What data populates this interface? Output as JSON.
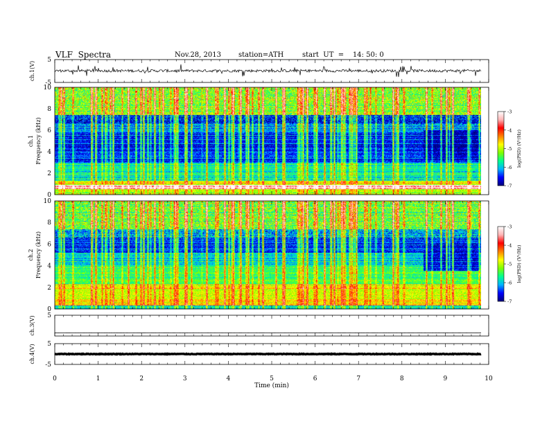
{
  "header": {
    "title": "VLF  Spectra",
    "date": "Nov.28, 2013",
    "station": "station=ATH",
    "start": "start  UT  =    14: 50: 0"
  },
  "chart_data": {
    "type": "heatmap",
    "xlabel": "Time  (min)",
    "xlim": [
      0,
      10
    ],
    "xticks": [
      "0",
      "1",
      "2",
      "3",
      "4",
      "5",
      "6",
      "7",
      "8",
      "9",
      "10"
    ],
    "data_end_min": 9.82,
    "panels": [
      {
        "id": "ch1-waveform",
        "kind": "line",
        "ylabel": "ch.1(V)",
        "ylim": [
          -5,
          5
        ],
        "yticks": [
          "5",
          "-5"
        ],
        "description_level": 0.1,
        "noise_amplitude": 0.6
      },
      {
        "id": "ch1-spectrogram",
        "kind": "spectrogram",
        "ylabel": "Frequency  (kHz)",
        "chlabel": "ch.1",
        "ylim": [
          0,
          10
        ],
        "yticks": [
          "0",
          "2",
          "4",
          "6",
          "8",
          "10"
        ],
        "colorbar": {
          "label": "log(PSD) (V²/Hz)",
          "range": [
            -7,
            -3
          ],
          "ticks": [
            "-3",
            "-4",
            "-5",
            "-6",
            "-7"
          ]
        },
        "bands_khz": [
          {
            "from": 0,
            "to": 0.5,
            "level": -5.2
          },
          {
            "from": 0.5,
            "to": 0.9,
            "level": -3.4
          },
          {
            "from": 0.9,
            "to": 1.3,
            "level": -5.0
          },
          {
            "from": 1.3,
            "to": 3.0,
            "level": -5.9
          },
          {
            "from": 3.0,
            "to": 5.8,
            "level": -6.6
          },
          {
            "from": 5.8,
            "to": 6.6,
            "level": -6.2
          },
          {
            "from": 6.6,
            "to": 7.4,
            "level": -6.6
          },
          {
            "from": 7.4,
            "to": 10.0,
            "level": -5.3
          }
        ],
        "dark_region": {
          "t_from": 8.5,
          "t_to": 9.8,
          "f_from": 3.3,
          "f_to": 6.0,
          "level": -6.9
        }
      },
      {
        "id": "ch2-spectrogram",
        "kind": "spectrogram",
        "ylabel": "Frequency  (kHz)",
        "chlabel": "ch.2",
        "ylim": [
          0,
          10
        ],
        "yticks": [
          "0",
          "2",
          "4",
          "6",
          "8",
          "10"
        ],
        "colorbar": {
          "label": "log(PSD) (V²/Hz)",
          "range": [
            -7,
            -3
          ],
          "ticks": [
            "-3",
            "-4",
            "-5",
            "-6",
            "-7"
          ]
        },
        "bands_khz": [
          {
            "from": 0,
            "to": 0.3,
            "level": -6.0
          },
          {
            "from": 0.3,
            "to": 0.9,
            "level": -4.8
          },
          {
            "from": 0.9,
            "to": 2.3,
            "level": -5.0
          },
          {
            "from": 2.3,
            "to": 4.0,
            "level": -5.6
          },
          {
            "from": 4.0,
            "to": 5.2,
            "level": -6.0
          },
          {
            "from": 5.2,
            "to": 6.6,
            "level": -6.5
          },
          {
            "from": 6.6,
            "to": 7.4,
            "level": -6.2
          },
          {
            "from": 7.4,
            "to": 10.0,
            "level": -5.4
          }
        ],
        "dark_region": {
          "t_from": 8.5,
          "t_to": 9.8,
          "f_from": 3.5,
          "f_to": 6.0,
          "level": -6.7
        }
      },
      {
        "id": "ch3-waveform",
        "kind": "line",
        "ylabel": "ch.3(V)",
        "ylim": [
          -5,
          5
        ],
        "yticks": [
          "5"
        ],
        "description_level": -3.5,
        "noise_amplitude": 0.05
      },
      {
        "id": "ch4-waveform",
        "kind": "line",
        "ylabel": "ch.4(V)",
        "ylim": [
          -5,
          5
        ],
        "yticks": [
          "5",
          "-5"
        ],
        "description_level": 0.0,
        "noise_amplitude": 0.15
      }
    ],
    "colors": {
      "colormap": [
        "#00007a",
        "#0000ff",
        "#00b4ff",
        "#00ff90",
        "#7fff00",
        "#ffff00",
        "#ff8000",
        "#ff0000",
        "#ffb4b4",
        "#ffffff"
      ],
      "axis": "#000000"
    }
  }
}
